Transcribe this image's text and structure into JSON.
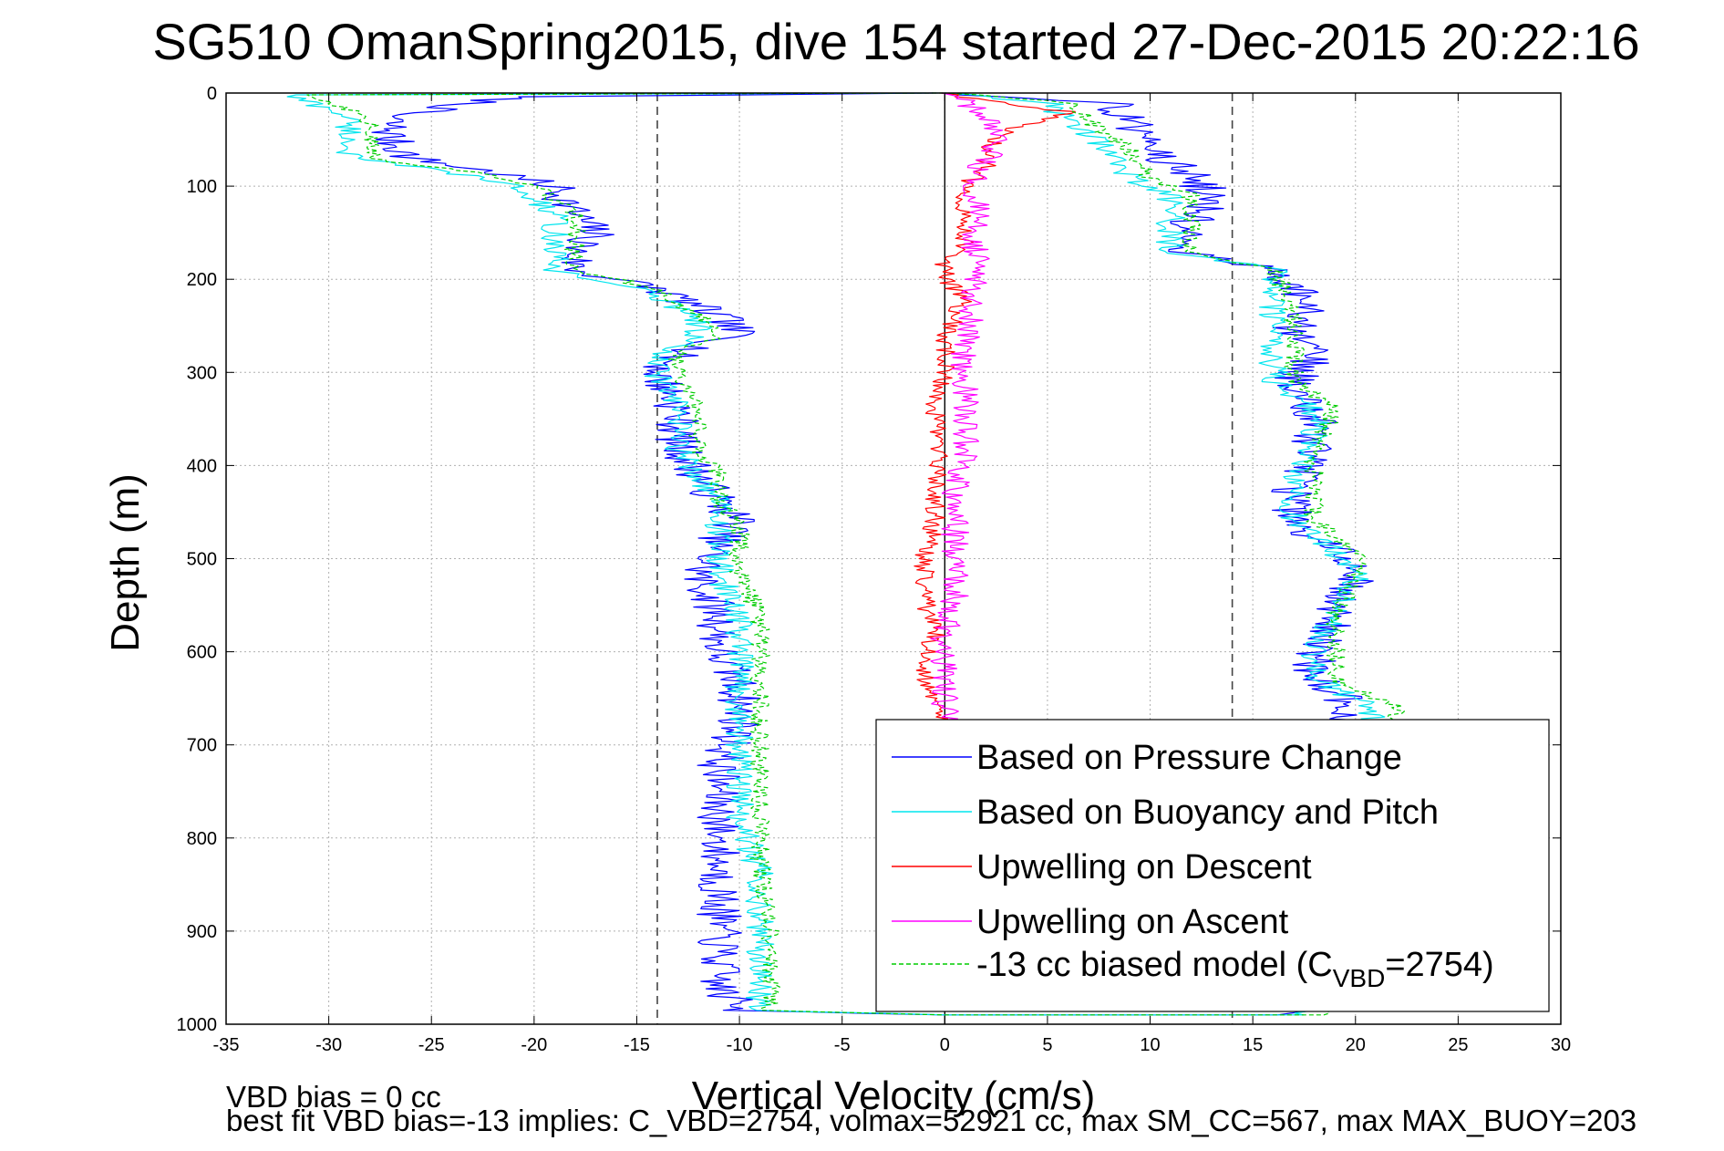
{
  "chart_data": {
    "type": "line",
    "title": "SG510 OmanSpring2015, dive 154 started 27-Dec-2015 20:22:16",
    "xlabel": "Vertical Velocity (cm/s)",
    "ylabel": "Depth (m)",
    "xlim": [
      -35,
      30
    ],
    "ylim": [
      0,
      1000
    ],
    "y_reversed": true,
    "x_ticks": [
      -35,
      -30,
      -25,
      -20,
      -15,
      -10,
      -5,
      0,
      5,
      10,
      15,
      20,
      25,
      30
    ],
    "y_ticks": [
      0,
      100,
      200,
      300,
      400,
      500,
      600,
      700,
      800,
      900,
      1000
    ],
    "grid": true,
    "legend_position": "bottom-right",
    "reference_lines": [
      {
        "x": -14,
        "style": "dashed",
        "color": "#444444"
      },
      {
        "x": 14,
        "style": "dashed",
        "color": "#444444"
      },
      {
        "x": 0,
        "style": "solid",
        "color": "#000000"
      }
    ],
    "series": [
      {
        "name": "Based on Pressure Change",
        "color": "#0000ff",
        "style": "solid",
        "noise": 1.1,
        "points": [
          [
            0,
            0
          ],
          [
            -21,
            4
          ],
          [
            -27,
            25
          ],
          [
            -27,
            50
          ],
          [
            -26,
            70
          ],
          [
            -22,
            85
          ],
          [
            -19,
            100
          ],
          [
            -18,
            130
          ],
          [
            -17,
            150
          ],
          [
            -18,
            170
          ],
          [
            -18,
            190
          ],
          [
            -14,
            210
          ],
          [
            -11,
            240
          ],
          [
            -10,
            260
          ],
          [
            -13,
            280
          ],
          [
            -14,
            300
          ],
          [
            -13,
            340
          ],
          [
            -13,
            380
          ],
          [
            -12,
            410
          ],
          [
            -11,
            440
          ],
          [
            -10,
            460
          ],
          [
            -11,
            480
          ],
          [
            -12,
            520
          ],
          [
            -11,
            560
          ],
          [
            -11,
            600
          ],
          [
            -10,
            640
          ],
          [
            -10,
            680
          ],
          [
            -11,
            720
          ],
          [
            -11,
            780
          ],
          [
            -11,
            840
          ],
          [
            -11,
            900
          ],
          [
            -11,
            960
          ],
          [
            -10,
            985
          ],
          [
            0,
            990
          ],
          [
            17,
            990
          ],
          [
            21,
            975
          ],
          [
            21,
            920
          ],
          [
            20,
            860
          ],
          [
            20,
            800
          ],
          [
            19,
            740
          ],
          [
            19,
            700
          ],
          [
            20,
            660
          ],
          [
            18,
            630
          ],
          [
            18,
            600
          ],
          [
            19,
            560
          ],
          [
            20,
            520
          ],
          [
            19,
            490
          ],
          [
            17,
            460
          ],
          [
            17,
            420
          ],
          [
            18,
            380
          ],
          [
            18,
            340
          ],
          [
            17,
            310
          ],
          [
            18,
            280
          ],
          [
            17,
            250
          ],
          [
            18,
            230
          ],
          [
            16,
            190
          ],
          [
            12,
            170
          ],
          [
            12,
            140
          ],
          [
            13,
            110
          ],
          [
            12,
            90
          ],
          [
            10,
            60
          ],
          [
            9,
            30
          ],
          [
            8,
            10
          ],
          [
            0,
            0
          ]
        ]
      },
      {
        "name": "Based on Buoyancy and Pitch",
        "color": "#00e5ee",
        "style": "solid",
        "noise": 0.7,
        "points": [
          [
            0,
            0
          ],
          [
            -32,
            2
          ],
          [
            -29,
            25
          ],
          [
            -29,
            50
          ],
          [
            -29,
            70
          ],
          [
            -24,
            85
          ],
          [
            -21,
            100
          ],
          [
            -19,
            130
          ],
          [
            -19,
            150
          ],
          [
            -19,
            170
          ],
          [
            -19,
            190
          ],
          [
            -15,
            210
          ],
          [
            -12,
            240
          ],
          [
            -12,
            260
          ],
          [
            -14,
            280
          ],
          [
            -14,
            300
          ],
          [
            -13,
            340
          ],
          [
            -13,
            380
          ],
          [
            -12,
            410
          ],
          [
            -11,
            440
          ],
          [
            -11,
            460
          ],
          [
            -11,
            480
          ],
          [
            -11,
            520
          ],
          [
            -10,
            560
          ],
          [
            -10,
            600
          ],
          [
            -10,
            640
          ],
          [
            -10,
            680
          ],
          [
            -10,
            720
          ],
          [
            -10,
            780
          ],
          [
            -9,
            840
          ],
          [
            -9,
            900
          ],
          [
            -9,
            960
          ],
          [
            -9,
            985
          ],
          [
            0,
            990
          ],
          [
            17,
            990
          ],
          [
            22,
            975
          ],
          [
            22,
            920
          ],
          [
            21,
            860
          ],
          [
            21,
            800
          ],
          [
            20,
            740
          ],
          [
            20,
            700
          ],
          [
            21,
            660
          ],
          [
            18,
            630
          ],
          [
            18,
            600
          ],
          [
            19,
            560
          ],
          [
            20,
            520
          ],
          [
            19,
            490
          ],
          [
            17,
            460
          ],
          [
            17,
            420
          ],
          [
            18,
            380
          ],
          [
            18,
            340
          ],
          [
            16,
            310
          ],
          [
            16,
            280
          ],
          [
            16,
            250
          ],
          [
            16,
            230
          ],
          [
            16,
            190
          ],
          [
            11,
            170
          ],
          [
            11,
            140
          ],
          [
            11,
            110
          ],
          [
            9,
            90
          ],
          [
            8,
            60
          ],
          [
            6,
            30
          ],
          [
            5,
            10
          ],
          [
            0,
            0
          ]
        ]
      },
      {
        "name": "Upwelling on Descent",
        "color": "#ff0000",
        "style": "solid",
        "noise": 0.5,
        "points": [
          [
            0,
            0
          ],
          [
            2,
            8
          ],
          [
            6,
            20
          ],
          [
            3,
            40
          ],
          [
            2,
            60
          ],
          [
            2,
            80
          ],
          [
            1,
            100
          ],
          [
            1,
            120
          ],
          [
            1,
            140
          ],
          [
            1,
            160
          ],
          [
            0,
            180
          ],
          [
            0,
            200
          ],
          [
            1,
            220
          ],
          [
            0,
            260
          ],
          [
            0,
            300
          ],
          [
            -0.5,
            340
          ],
          [
            -0.3,
            380
          ],
          [
            -0.5,
            420
          ],
          [
            -0.5,
            460
          ],
          [
            -1,
            500
          ],
          [
            -1,
            540
          ],
          [
            -0.5,
            580
          ],
          [
            -1,
            620
          ],
          [
            -0.5,
            660
          ],
          [
            0,
            680
          ]
        ]
      },
      {
        "name": "Upwelling on Ascent",
        "color": "#ff00ff",
        "style": "solid",
        "noise": 0.7,
        "points": [
          [
            0,
            0
          ],
          [
            1,
            10
          ],
          [
            2,
            30
          ],
          [
            2.5,
            60
          ],
          [
            1.5,
            80
          ],
          [
            1.5,
            100
          ],
          [
            1.5,
            140
          ],
          [
            1.5,
            180
          ],
          [
            1.5,
            220
          ],
          [
            1,
            260
          ],
          [
            1,
            300
          ],
          [
            1,
            340
          ],
          [
            1,
            380
          ],
          [
            0.5,
            420
          ],
          [
            0.5,
            460
          ],
          [
            0.5,
            500
          ],
          [
            0.5,
            540
          ],
          [
            0,
            580
          ],
          [
            0,
            620
          ],
          [
            0,
            660
          ],
          [
            0,
            680
          ]
        ]
      },
      {
        "name": "-13 cc biased model (C_VBD=2754)",
        "label_main": "-13 cc biased model (C",
        "label_sub": "VBD",
        "label_tail": "=2754)",
        "color": "#00cc00",
        "style": "dashed",
        "noise": 0.5,
        "points": [
          [
            0,
            0
          ],
          [
            -31,
            2
          ],
          [
            -28,
            25
          ],
          [
            -28,
            50
          ],
          [
            -28,
            70
          ],
          [
            -23,
            85
          ],
          [
            -20,
            100
          ],
          [
            -18,
            130
          ],
          [
            -18,
            150
          ],
          [
            -18,
            170
          ],
          [
            -18,
            190
          ],
          [
            -14,
            210
          ],
          [
            -12,
            240
          ],
          [
            -11,
            260
          ],
          [
            -13,
            280
          ],
          [
            -13,
            300
          ],
          [
            -12,
            340
          ],
          [
            -12,
            380
          ],
          [
            -11,
            410
          ],
          [
            -11,
            440
          ],
          [
            -10,
            460
          ],
          [
            -10,
            480
          ],
          [
            -10,
            520
          ],
          [
            -9,
            560
          ],
          [
            -9,
            600
          ],
          [
            -9,
            640
          ],
          [
            -9,
            680
          ],
          [
            -9,
            720
          ],
          [
            -9,
            780
          ],
          [
            -9,
            840
          ],
          [
            -8.5,
            900
          ],
          [
            -8.5,
            960
          ],
          [
            -8.5,
            985
          ],
          [
            0,
            990
          ],
          [
            18,
            990
          ],
          [
            22,
            975
          ],
          [
            22,
            920
          ],
          [
            22,
            860
          ],
          [
            21,
            800
          ],
          [
            21,
            740
          ],
          [
            21,
            700
          ],
          [
            22,
            660
          ],
          [
            19,
            630
          ],
          [
            19,
            600
          ],
          [
            19,
            560
          ],
          [
            20,
            520
          ],
          [
            20,
            490
          ],
          [
            18,
            460
          ],
          [
            18,
            420
          ],
          [
            18,
            380
          ],
          [
            19,
            340
          ],
          [
            17,
            310
          ],
          [
            17,
            280
          ],
          [
            17,
            250
          ],
          [
            17,
            230
          ],
          [
            16,
            190
          ],
          [
            12,
            170
          ],
          [
            12,
            140
          ],
          [
            12,
            110
          ],
          [
            10,
            90
          ],
          [
            9,
            60
          ],
          [
            7,
            30
          ],
          [
            6,
            10
          ],
          [
            0,
            0
          ]
        ]
      }
    ],
    "footer_lines": [
      "VBD bias = 0 cc",
      "best fit VBD bias=-13 implies: C_VBD=2754, volmax=52921 cc, max SM_CC=567, max MAX_BUOY=203"
    ]
  }
}
